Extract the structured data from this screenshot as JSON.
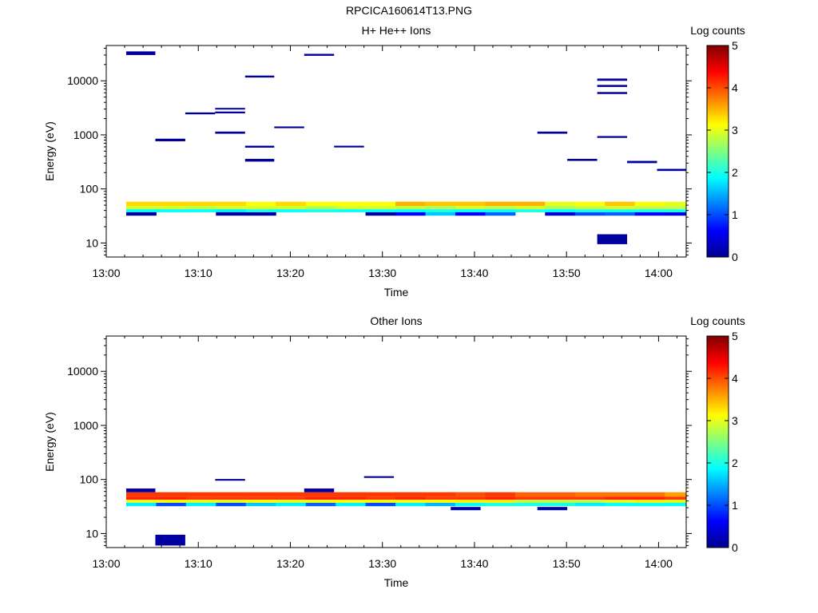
{
  "figure_title": "RPCICA160614T13.PNG",
  "chart_data": [
    {
      "type": "heatmap",
      "title": "H+ He++ Ions",
      "xlabel": "Time",
      "ylabel": "Energy (eV)",
      "x_range": [
        "13:00",
        "14:03"
      ],
      "x_ticks": [
        "13:00",
        "13:10",
        "13:20",
        "13:30",
        "13:40",
        "13:50",
        "14:00"
      ],
      "y_scale": "log",
      "ylim": [
        5.5,
        45000
      ],
      "y_ticks": [
        "10",
        "100",
        "1000",
        "10000"
      ],
      "colorbar": {
        "label": "Log counts",
        "min": 0,
        "max": 5,
        "ticks": [
          "0",
          "1",
          "2",
          "3",
          "4",
          "5"
        ],
        "colormap": "jet"
      },
      "cells": [
        {
          "t0": "13:02:10",
          "t1": "13:05:20",
          "e0": 30000,
          "e1": 35000,
          "v": 0.1
        },
        {
          "t0": "13:05:20",
          "t1": "13:08:35",
          "e0": 760,
          "e1": 850,
          "v": 0.1
        },
        {
          "t0": "13:08:35",
          "t1": "13:11:50",
          "e0": 2400,
          "e1": 2600,
          "v": 0.1
        },
        {
          "t0": "13:11:50",
          "t1": "13:15:05",
          "e0": 2950,
          "e1": 3150,
          "v": 0.1
        },
        {
          "t0": "13:11:50",
          "t1": "13:15:05",
          "e0": 2500,
          "e1": 2700,
          "v": 0.1
        },
        {
          "t0": "13:11:50",
          "t1": "13:15:05",
          "e0": 1050,
          "e1": 1150,
          "v": 0.1
        },
        {
          "t0": "13:15:05",
          "t1": "13:18:15",
          "e0": 11500,
          "e1": 12500,
          "v": 0.1
        },
        {
          "t0": "13:15:05",
          "t1": "13:18:15",
          "e0": 580,
          "e1": 630,
          "v": 0.1
        },
        {
          "t0": "13:15:05",
          "t1": "13:18:15",
          "e0": 320,
          "e1": 360,
          "v": 0.1
        },
        {
          "t0": "13:18:15",
          "t1": "13:21:30",
          "e0": 1330,
          "e1": 1430,
          "v": 0.1
        },
        {
          "t0": "13:21:30",
          "t1": "13:24:45",
          "e0": 29000,
          "e1": 31500,
          "v": 0.1
        },
        {
          "t0": "13:24:45",
          "t1": "13:28:00",
          "e0": 585,
          "e1": 630,
          "v": 0.1
        },
        {
          "t0": "13:46:50",
          "t1": "13:50:05",
          "e0": 1050,
          "e1": 1150,
          "v": 0.1
        },
        {
          "t0": "13:50:05",
          "t1": "13:53:20",
          "e0": 330,
          "e1": 360,
          "v": 0.1
        },
        {
          "t0": "13:53:20",
          "t1": "13:56:35",
          "e0": 10000,
          "e1": 11000,
          "v": 0.1
        },
        {
          "t0": "13:53:20",
          "t1": "13:56:35",
          "e0": 7700,
          "e1": 8400,
          "v": 0.1
        },
        {
          "t0": "13:53:20",
          "t1": "13:56:35",
          "e0": 5700,
          "e1": 6200,
          "v": 0.1
        },
        {
          "t0": "13:53:20",
          "t1": "13:56:35",
          "e0": 880,
          "e1": 950,
          "v": 0.1
        },
        {
          "t0": "13:53:20",
          "t1": "13:56:35",
          "e0": 9.5,
          "e1": 14.5,
          "v": 0.1
        },
        {
          "t0": "13:56:35",
          "t1": "13:59:50",
          "e0": 300,
          "e1": 330,
          "v": 0.1
        },
        {
          "t0": "13:59:50",
          "t1": "14:03:00",
          "e0": 215,
          "e1": 235,
          "v": 0.1
        }
      ],
      "band_rows": [
        {
          "e0": 48,
          "e1": 58,
          "values": [
            3.3,
            3.3,
            3.3,
            3.3,
            3.1,
            3.3,
            3.1,
            3.1,
            3.1,
            3.5,
            3.4,
            3.4,
            3.5,
            3.5,
            3.0,
            3.1,
            3.4,
            3.1,
            3.0,
            3.1
          ]
        },
        {
          "e0": 42,
          "e1": 48,
          "values": [
            2.9,
            2.9,
            2.8,
            2.9,
            2.9,
            2.9,
            2.7,
            2.9,
            2.9,
            2.8,
            2.7,
            2.9,
            2.8,
            2.9,
            2.7,
            2.8,
            2.9,
            2.8,
            2.8,
            3.0
          ]
        },
        {
          "e0": 37,
          "e1": 42,
          "values": [
            1.9,
            1.9,
            1.9,
            1.8,
            2.0,
            1.9,
            2.0,
            1.9,
            1.9,
            1.9,
            2.0,
            1.9,
            1.9,
            2.0,
            1.9,
            2.0,
            2.0,
            2.0,
            2.0,
            1.8
          ]
        },
        {
          "e0": 32,
          "e1": 37,
          "values": [
            0.1,
            null,
            null,
            0.1,
            0.1,
            null,
            null,
            null,
            0.1,
            0.6,
            1.6,
            0.6,
            1.1,
            null,
            0.4,
            1.0,
            1.1,
            0.6,
            0.5,
            0.6
          ]
        }
      ]
    },
    {
      "type": "heatmap",
      "title": "Other Ions",
      "xlabel": "Time",
      "ylabel": "Energy (eV)",
      "x_range": [
        "13:00",
        "14:03"
      ],
      "x_ticks": [
        "13:00",
        "13:10",
        "13:20",
        "13:30",
        "13:40",
        "13:50",
        "14:00"
      ],
      "y_scale": "log",
      "ylim": [
        5.5,
        45000
      ],
      "y_ticks": [
        "10",
        "100",
        "1000",
        "10000"
      ],
      "colorbar": {
        "label": "Log counts",
        "min": 0,
        "max": 5,
        "ticks": [
          "0",
          "1",
          "2",
          "3",
          "4",
          "5"
        ],
        "colormap": "jet"
      },
      "cells": [
        {
          "t0": "13:02:10",
          "t1": "13:05:20",
          "e0": 58,
          "e1": 68,
          "v": 0.1
        },
        {
          "t0": "13:05:20",
          "t1": "13:08:35",
          "e0": 6,
          "e1": 9.5,
          "v": 0.1
        },
        {
          "t0": "13:11:50",
          "t1": "13:15:05",
          "e0": 95,
          "e1": 102,
          "v": 0.1
        },
        {
          "t0": "13:21:30",
          "t1": "13:24:45",
          "e0": 58,
          "e1": 68,
          "v": 0.1
        },
        {
          "t0": "13:28:00",
          "t1": "13:31:15",
          "e0": 107,
          "e1": 115,
          "v": 0.1
        },
        {
          "t0": "13:37:25",
          "t1": "13:40:40",
          "e0": 27,
          "e1": 31,
          "v": 0.2
        },
        {
          "t0": "13:46:50",
          "t1": "13:50:05",
          "e0": 27,
          "e1": 31,
          "v": 0.2
        }
      ],
      "band_rows": [
        {
          "e0": 48,
          "e1": 58,
          "values": [
            4.1,
            4.1,
            4.1,
            4.1,
            4.1,
            4.1,
            4.1,
            4.1,
            4.1,
            4.1,
            4.1,
            4.0,
            4.1,
            3.9,
            3.9,
            3.8,
            3.8,
            3.8,
            3.6,
            3.8
          ]
        },
        {
          "e0": 42,
          "e1": 48,
          "values": [
            4.2,
            4.2,
            4.1,
            4.1,
            4.1,
            4.1,
            4.2,
            4.2,
            4.1,
            4.2,
            4.1,
            4.1,
            4.2,
            4.1,
            4.1,
            4.1,
            4.2,
            4.2,
            4.1,
            4.1
          ]
        },
        {
          "e0": 37,
          "e1": 42,
          "values": [
            3.0,
            3.1,
            3.0,
            3.0,
            3.1,
            3.0,
            3.1,
            3.1,
            3.1,
            3.1,
            3.1,
            3.2,
            3.2,
            2.8,
            2.8,
            2.8,
            3.0,
            3.2,
            3.0,
            3.2
          ]
        },
        {
          "e0": 32,
          "e1": 37,
          "values": [
            1.8,
            1.0,
            1.8,
            1.0,
            1.6,
            1.8,
            1.1,
            1.8,
            1.0,
            1.8,
            1.5,
            1.9,
            2.0,
            2.0,
            2.0,
            1.8,
            1.9,
            1.9,
            1.9,
            1.9
          ]
        }
      ]
    }
  ]
}
